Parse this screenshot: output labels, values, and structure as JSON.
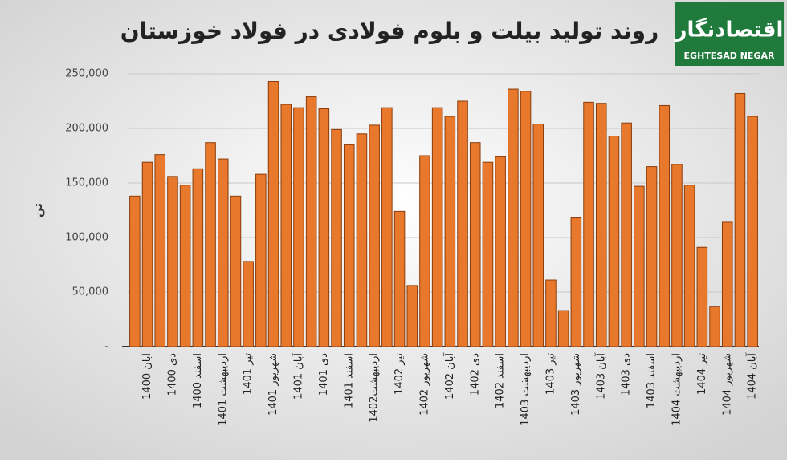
{
  "chart_data": {
    "type": "bar",
    "title": "روند تولید بیلت و بلوم فولادی در فولاد خوزستان",
    "ylabel": "تن",
    "logo": {
      "text": "اقتصادنگار",
      "subtext": "EGHTESAD NEGAR"
    },
    "categories": [
      null,
      "آبان 1400",
      null,
      "دی 1400",
      null,
      "اسفند 1400",
      null,
      "اردیبهشت 1401",
      null,
      "تیر 1401",
      null,
      "شهریور 1401",
      null,
      "آبان 1401",
      null,
      "دی 1401",
      null,
      "اسفند 1401",
      null,
      "اردیبهشت1402",
      null,
      "تیر 1402",
      null,
      "شهریور 1402",
      null,
      "آبان 1402",
      null,
      "دی 1402",
      null,
      "اسفند 1402",
      null,
      "اردیبهشت 1403",
      null,
      "تیر 1403",
      null,
      "شهریور 1403",
      null,
      "آبان 1403",
      null,
      "دی 1403",
      null,
      "اسفند 1403",
      null,
      "اردیبهشت 1404",
      null,
      "تیر 1404",
      null,
      "شهریور 1404",
      null,
      "آبان 1404"
    ],
    "values": [
      138000,
      169000,
      176000,
      156000,
      148000,
      163000,
      187000,
      172000,
      138000,
      78000,
      158000,
      243000,
      222000,
      219000,
      229000,
      218000,
      199000,
      185000,
      195000,
      203000,
      219000,
      124000,
      56000,
      175000,
      219000,
      211000,
      225000,
      187000,
      169000,
      174000,
      236000,
      234000,
      204000,
      61000,
      33000,
      118000,
      224000,
      223000,
      193000,
      205000,
      147000,
      165000,
      221000,
      167000,
      148000,
      91000,
      37000,
      114000,
      232000,
      211000
    ],
    "color": "#e8782c",
    "ylim": [
      0,
      250000
    ],
    "yticks": [
      {
        "value": 0,
        "label": "-"
      },
      {
        "value": 50000,
        "label": "50,000"
      },
      {
        "value": 100000,
        "label": "100,000"
      },
      {
        "value": 150000,
        "label": "150,000"
      },
      {
        "value": 200000,
        "label": "200,000"
      },
      {
        "value": 250000,
        "label": "250,000"
      }
    ],
    "grid": true
  }
}
